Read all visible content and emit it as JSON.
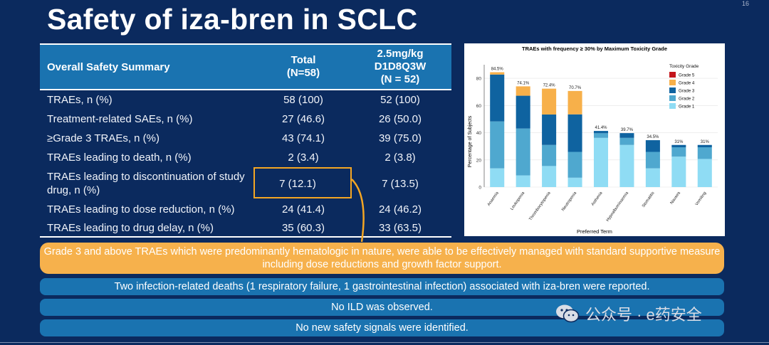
{
  "page_number": "16",
  "title": "Safety of iza-bren in SCLC",
  "table": {
    "header": {
      "label": "Overall Safety Summary",
      "total_line1": "Total",
      "total_line2": "(N=58)",
      "dose_line1": "2.5mg/kg",
      "dose_line2": "D1D8Q3W",
      "dose_line3": "(N = 52)"
    },
    "rows": [
      {
        "label": "TRAEs, n (%)",
        "total": "58 (100)",
        "dose": "52 (100)"
      },
      {
        "label": "Treatment-related SAEs, n (%)",
        "total": "27 (46.6)",
        "dose": "26 (50.0)"
      },
      {
        "label": "≥Grade 3 TRAEs, n (%)",
        "total": "43 (74.1)",
        "dose": "39 (75.0)"
      },
      {
        "label": "TRAEs leading to death, n (%)",
        "total": "2 (3.4)",
        "dose": "2 (3.8)"
      },
      {
        "label": "TRAEs leading to discontinuation of study drug, n (%)",
        "total": "7 (12.1)",
        "dose": "7 (13.5)"
      },
      {
        "label": "TRAEs leading to dose reduction, n (%)",
        "total": "24 (41.4)",
        "dose": "24 (46.2)"
      },
      {
        "label": "TRAEs leading to drug delay, n (%)",
        "total": "35 (60.3)",
        "dose": "33 (63.5)"
      }
    ]
  },
  "chart_data": {
    "type": "bar",
    "stacked": true,
    "title": "TRAEs with frequency ≥ 30% by Maximum Toxicity Grade",
    "xlabel": "Preferred Term",
    "ylabel": "Percentage of Subjects",
    "ylim": [
      0,
      90
    ],
    "yticks": [
      0,
      20,
      40,
      60,
      80
    ],
    "categories": [
      "Anaemia",
      "Leukopenia",
      "Thrombocytopenia",
      "Neutropenia",
      "Asthenia",
      "Hypoalbuminaemia",
      "Stomatitis",
      "Nausea",
      "Vomiting"
    ],
    "totals_labels": [
      "84.5%",
      "74.1%",
      "72.4%",
      "70.7%",
      "41.4%",
      "39.7%",
      "34.5%",
      "31%",
      "31%"
    ],
    "legend_title": "Toxicity Grade",
    "legend_position": "top-right",
    "series": [
      {
        "name": "Grade 1",
        "color": "#8fdcf4",
        "values": [
          13.8,
          8.6,
          15.5,
          6.9,
          36.2,
          31.0,
          13.8,
          22.4,
          20.7
        ]
      },
      {
        "name": "Grade 2",
        "color": "#4fa8cf",
        "values": [
          34.5,
          34.5,
          15.5,
          19.0,
          3.4,
          5.2,
          12.1,
          6.9,
          8.6
        ]
      },
      {
        "name": "Grade 3",
        "color": "#0f63a0",
        "values": [
          34.5,
          24.1,
          22.4,
          27.6,
          1.7,
          3.5,
          8.6,
          1.7,
          1.7
        ]
      },
      {
        "name": "Grade 4",
        "color": "#f7b04a",
        "values": [
          1.7,
          6.9,
          19.0,
          17.2,
          0,
          0,
          0,
          0,
          0
        ]
      },
      {
        "name": "Grade 5",
        "color": "#c4161c",
        "values": [
          0,
          0,
          0,
          0,
          0,
          0,
          0,
          0,
          0
        ]
      }
    ]
  },
  "banners": {
    "orange": "Grade 3 and above TRAEs which were predominantly hematologic in nature, were able to be effectively managed with standard supportive measure including dose reductions and growth factor support.",
    "blue1": "Two infection-related deaths (1 respiratory failure, 1 gastrointestinal infection) associated with iza-bren were reported.",
    "blue2": "No ILD was observed.",
    "blue3": "No new safety signals were identified."
  },
  "watermark": {
    "text": "公众号 · e药安全",
    "icon": "wechat-icon"
  }
}
